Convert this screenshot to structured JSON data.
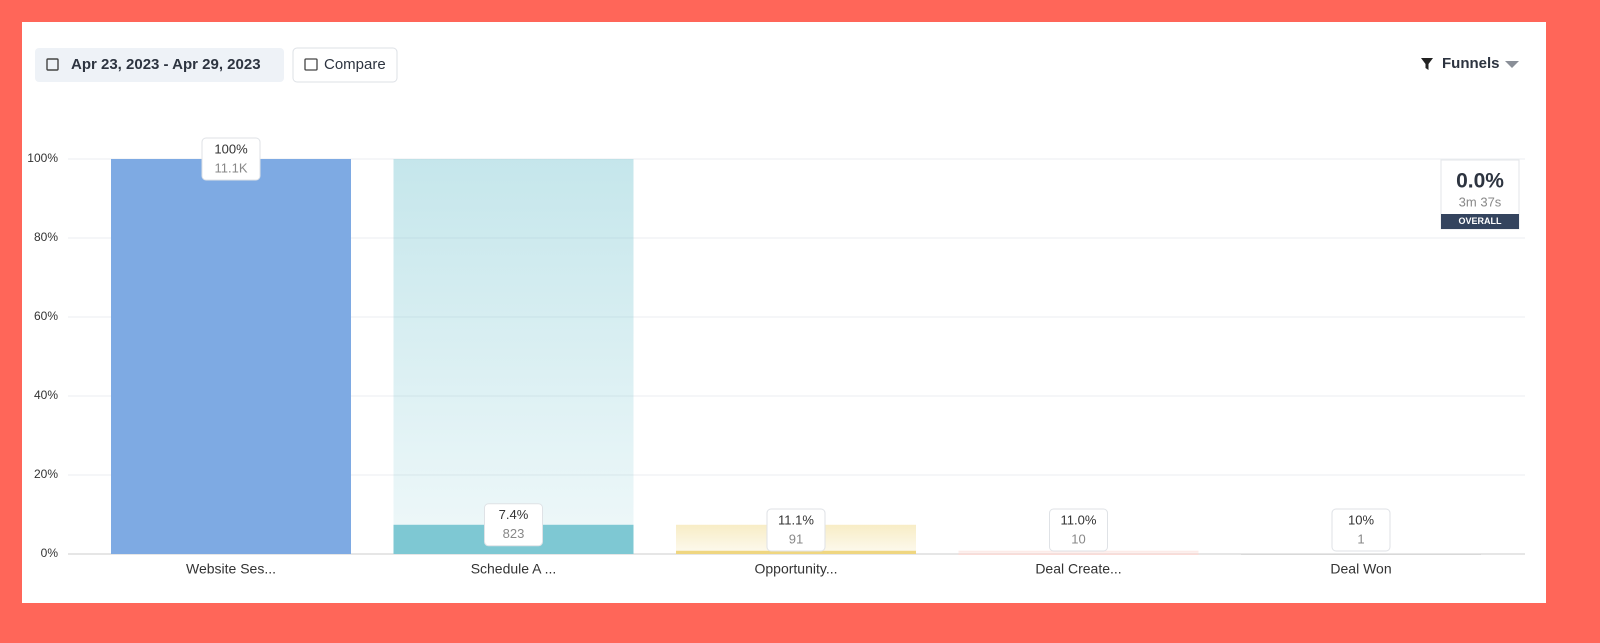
{
  "toolbar": {
    "date_range": "Apr 23, 2023 - Apr 29, 2023",
    "compare": "Compare",
    "view": "Funnels"
  },
  "overall": {
    "rate": "0.0%",
    "time": "3m 37s",
    "label": "OVERALL"
  },
  "chart_data": {
    "type": "funnel",
    "categories": [
      "Website Ses...",
      "Schedule A ...",
      "Opportunity...",
      "Deal Create...",
      "Deal Won"
    ],
    "values": [
      100,
      7.4,
      0.82,
      0.09,
      0.01
    ],
    "colors": [
      "#7eaae3",
      "#7ec8d3",
      "#efd680",
      "#f6c9c2",
      "#d8d8d8"
    ],
    "rates": [
      100,
      7.4,
      11.1,
      11.0,
      10
    ],
    "rate_labels": [
      "100%",
      "7.4%",
      "11.1%",
      "11.0%",
      "10%"
    ],
    "counts": [
      11100,
      823,
      91,
      10,
      1
    ],
    "count_labels": [
      "11.1K",
      "823",
      "91",
      "10",
      "1"
    ],
    "ylim": [
      0,
      100
    ],
    "yticks": [
      {
        "value": 0,
        "label": "0%"
      },
      {
        "value": 20,
        "label": "20%"
      },
      {
        "value": 40,
        "label": "40%"
      },
      {
        "value": 60,
        "label": "60%"
      },
      {
        "value": 80,
        "label": "80%"
      },
      {
        "value": 100,
        "label": "100%"
      }
    ],
    "grid": true
  }
}
